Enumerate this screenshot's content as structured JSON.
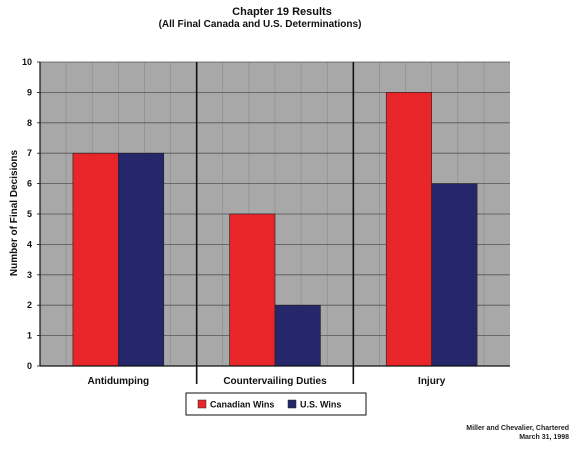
{
  "chart_data": {
    "type": "bar",
    "title": "Chapter 19 Results",
    "subtitle": "(All Final Canada and U.S. Determinations)",
    "ylabel": "Number of Final Decisions",
    "xlabel": "",
    "categories": [
      "Antidumping",
      "Countervailing Duties",
      "Injury"
    ],
    "series": [
      {
        "name": "Canadian Wins",
        "color": "#e8262a",
        "values": [
          7,
          5,
          9
        ]
      },
      {
        "name": "U.S. Wins",
        "color": "#26276b",
        "values": [
          7,
          2,
          6
        ]
      }
    ],
    "ylim": [
      0,
      10
    ],
    "yticks": [
      "0",
      "1",
      "2",
      "3",
      "4",
      "5",
      "6",
      "7",
      "8",
      "9",
      "10"
    ],
    "grid": true,
    "plot_background": "#a8a8a8",
    "legend_position": "bottom-center"
  },
  "footer": {
    "line1": "Miller and Chevalier, Chartered",
    "line2": "March 31, 1998"
  }
}
